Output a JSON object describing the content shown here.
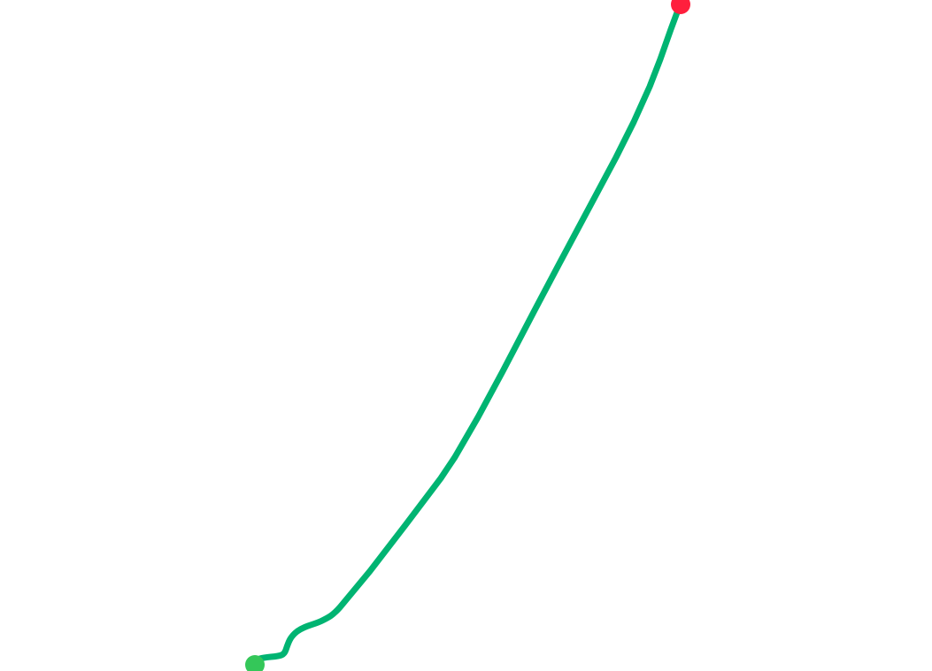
{
  "route": {
    "line_color": "#00b472",
    "start_marker": {
      "icon": "start-point-icon",
      "color": "#34c759"
    },
    "end_marker": {
      "icon": "end-point-icon",
      "color": "#ff1f3d"
    }
  }
}
